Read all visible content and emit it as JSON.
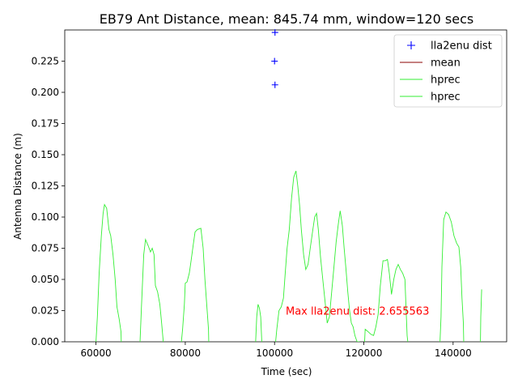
{
  "chart_data": {
    "type": "line",
    "title": "EB79 Ant Distance, mean: 845.74 mm, window=120 secs",
    "xlabel": "Time (sec)",
    "ylabel": "Antenna Distance (m)",
    "xlim": [
      53000,
      152000
    ],
    "ylim": [
      0,
      0.25
    ],
    "x_ticks": [
      60000,
      80000,
      100000,
      120000,
      140000
    ],
    "y_ticks": [
      0.0,
      0.025,
      0.05,
      0.075,
      0.1,
      0.125,
      0.15,
      0.175,
      0.2,
      0.225
    ],
    "x_tick_labels": [
      "60000",
      "80000",
      "100000",
      "120000",
      "140000"
    ],
    "y_tick_labels": [
      "0.000",
      "0.025",
      "0.050",
      "0.075",
      "0.100",
      "0.125",
      "0.150",
      "0.175",
      "0.200",
      "0.225"
    ],
    "legend_position": "top-right",
    "legend": [
      {
        "label": "lla2enu dist",
        "marker": "+",
        "color": "#0000ff"
      },
      {
        "label": "mean",
        "marker": "line",
        "color": "#8b0000"
      },
      {
        "label": "hprec",
        "marker": "line",
        "color": "#33ee33"
      },
      {
        "label": "hprec",
        "marker": "line",
        "color": "#33ee33"
      }
    ],
    "annotation": {
      "text": "Max lla2enu dist: 2.655563",
      "x": 102500,
      "y": 0.021,
      "color": "#ff0000"
    },
    "series": [
      {
        "name": "lla2enu dist",
        "type": "scatter",
        "color": "#0000ff",
        "points": [
          [
            100100,
            0.248
          ],
          [
            100000,
            0.225
          ],
          [
            100100,
            0.206
          ]
        ]
      },
      {
        "name": "hprec",
        "type": "line",
        "color": "#33ee33",
        "points": [
          [
            60000,
            -0.005
          ],
          [
            60000,
            0.0
          ],
          [
            60300,
            0.02
          ],
          [
            60700,
            0.055
          ],
          [
            61200,
            0.085
          ],
          [
            61600,
            0.103
          ],
          [
            61900,
            0.11
          ],
          [
            62400,
            0.107
          ],
          [
            62900,
            0.09
          ],
          [
            63300,
            0.085
          ],
          [
            63800,
            0.07
          ],
          [
            64300,
            0.05
          ],
          [
            64700,
            0.028
          ],
          [
            65200,
            0.018
          ],
          [
            65600,
            0.008
          ],
          [
            65700,
            -0.005
          ],
          [
            69800,
            -0.005
          ],
          [
            70200,
            0.03
          ],
          [
            70700,
            0.07
          ],
          [
            71100,
            0.082
          ],
          [
            71700,
            0.077
          ],
          [
            72200,
            0.072
          ],
          [
            72600,
            0.075
          ],
          [
            73000,
            0.07
          ],
          [
            73300,
            0.045
          ],
          [
            73800,
            0.04
          ],
          [
            74300,
            0.03
          ],
          [
            74700,
            0.015
          ],
          [
            75200,
            -0.005
          ],
          [
            79000,
            -0.005
          ],
          [
            79400,
            0.01
          ],
          [
            79800,
            0.03
          ],
          [
            80000,
            0.047
          ],
          [
            80400,
            0.048
          ],
          [
            80900,
            0.055
          ],
          [
            81300,
            0.065
          ],
          [
            81800,
            0.078
          ],
          [
            82200,
            0.088
          ],
          [
            82700,
            0.09
          ],
          [
            83500,
            0.091
          ],
          [
            84000,
            0.075
          ],
          [
            84400,
            0.05
          ],
          [
            84800,
            0.03
          ],
          [
            85200,
            0.01
          ],
          [
            85300,
            -0.005
          ],
          [
            95700,
            -0.005
          ],
          [
            96000,
            0.02
          ],
          [
            96300,
            0.03
          ],
          [
            96600,
            0.027
          ],
          [
            96900,
            0.02
          ],
          [
            97200,
            -0.005
          ],
          [
            100100,
            -0.005
          ],
          [
            100500,
            0.01
          ],
          [
            101000,
            0.025
          ],
          [
            101500,
            0.028
          ],
          [
            102000,
            0.035
          ],
          [
            102400,
            0.055
          ],
          [
            102800,
            0.075
          ],
          [
            103300,
            0.09
          ],
          [
            103800,
            0.115
          ],
          [
            104300,
            0.132
          ],
          [
            104800,
            0.137
          ],
          [
            105200,
            0.125
          ],
          [
            105600,
            0.11
          ],
          [
            106000,
            0.09
          ],
          [
            106500,
            0.07
          ],
          [
            107000,
            0.058
          ],
          [
            107500,
            0.062
          ],
          [
            108000,
            0.075
          ],
          [
            108500,
            0.088
          ],
          [
            109000,
            0.1
          ],
          [
            109400,
            0.103
          ],
          [
            109800,
            0.09
          ],
          [
            110300,
            0.068
          ],
          [
            110800,
            0.05
          ],
          [
            111300,
            0.033
          ],
          [
            111800,
            0.015
          ],
          [
            112300,
            0.02
          ],
          [
            112800,
            0.04
          ],
          [
            113300,
            0.06
          ],
          [
            113800,
            0.08
          ],
          [
            114300,
            0.095
          ],
          [
            114700,
            0.105
          ],
          [
            115200,
            0.093
          ],
          [
            115600,
            0.075
          ],
          [
            116000,
            0.058
          ],
          [
            116400,
            0.04
          ],
          [
            116800,
            0.025
          ],
          [
            117200,
            0.015
          ],
          [
            117600,
            0.012
          ],
          [
            118000,
            0.005
          ],
          [
            118500,
            0.0
          ],
          [
            119000,
            0.0
          ],
          [
            119400,
            -0.005
          ],
          [
            120100,
            -0.005
          ],
          [
            120300,
            0.01
          ],
          [
            121000,
            0.008
          ],
          [
            121600,
            0.006
          ],
          [
            122200,
            0.005
          ],
          [
            122700,
            0.012
          ],
          [
            123200,
            0.022
          ],
          [
            123700,
            0.045
          ],
          [
            124300,
            0.065
          ],
          [
            124800,
            0.065
          ],
          [
            125300,
            0.066
          ],
          [
            125700,
            0.055
          ],
          [
            126200,
            0.038
          ],
          [
            126700,
            0.05
          ],
          [
            127200,
            0.058
          ],
          [
            127700,
            0.062
          ],
          [
            128200,
            0.058
          ],
          [
            128700,
            0.055
          ],
          [
            129200,
            0.05
          ],
          [
            129700,
            0.005
          ],
          [
            130000,
            -0.005
          ],
          [
            137000,
            -0.005
          ],
          [
            137300,
            0.02
          ],
          [
            137500,
            0.06
          ],
          [
            137900,
            0.098
          ],
          [
            138400,
            0.104
          ],
          [
            139000,
            0.102
          ],
          [
            139600,
            0.096
          ],
          [
            140200,
            0.085
          ],
          [
            140800,
            0.079
          ],
          [
            141300,
            0.076
          ],
          [
            141700,
            0.06
          ],
          [
            142000,
            0.035
          ],
          [
            142300,
            0.015
          ],
          [
            142400,
            -0.005
          ],
          [
            146100,
            -0.005
          ],
          [
            146200,
            0.02
          ],
          [
            146400,
            0.042
          ]
        ]
      }
    ]
  }
}
